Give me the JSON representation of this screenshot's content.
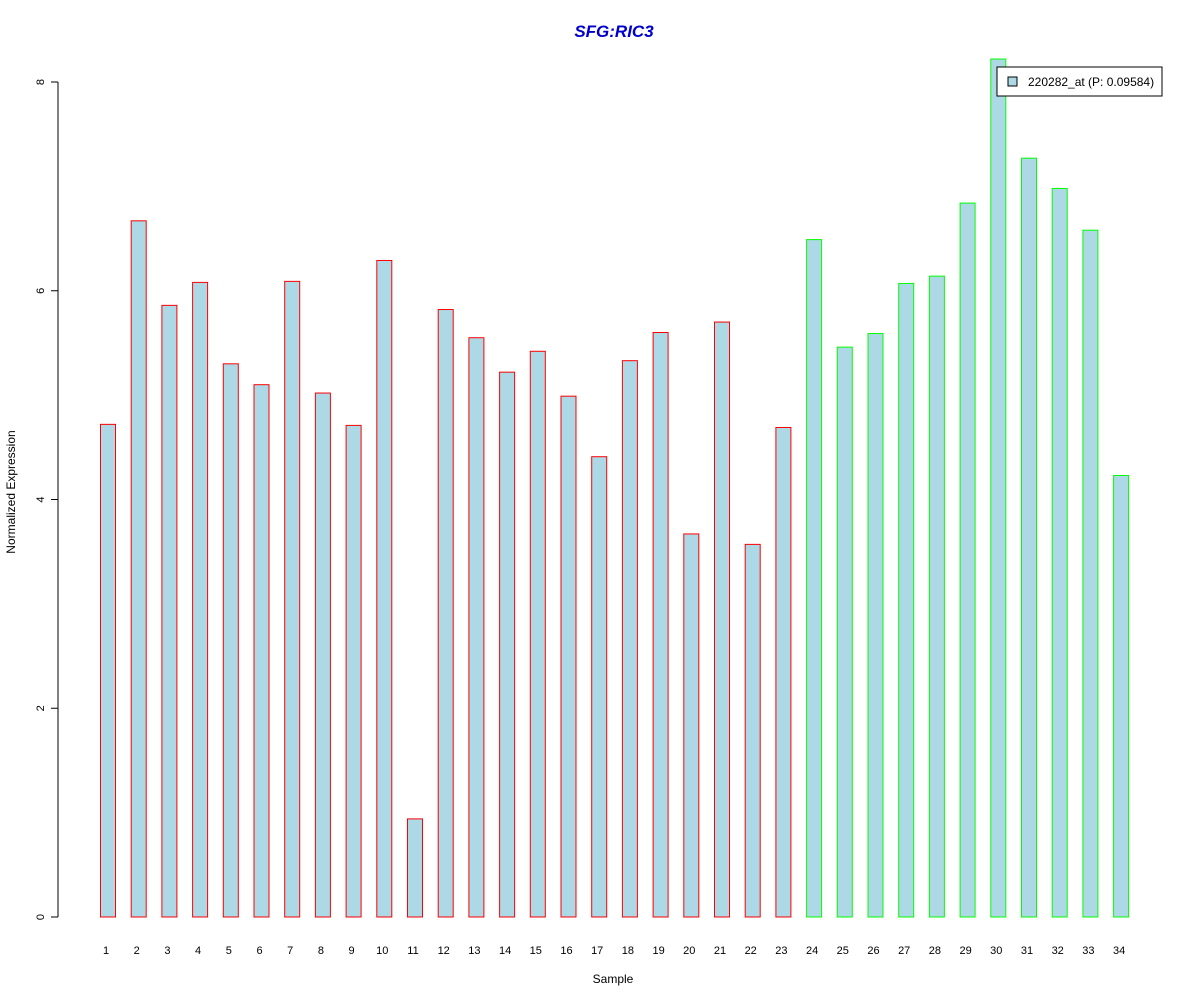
{
  "chart_data": {
    "type": "bar",
    "title": "SFG:RIC3",
    "xlabel": "Sample",
    "ylabel": "Normalized Expression",
    "ylim": [
      0,
      8
    ],
    "yticks": [
      0,
      2,
      4,
      6,
      8
    ],
    "grid": false,
    "legend_position": "top-right",
    "categories": [
      "1",
      "2",
      "3",
      "4",
      "5",
      "6",
      "7",
      "8",
      "9",
      "10",
      "11",
      "12",
      "13",
      "14",
      "15",
      "16",
      "17",
      "18",
      "19",
      "20",
      "21",
      "22",
      "23",
      "24",
      "25",
      "26",
      "27",
      "28",
      "29",
      "30",
      "31",
      "32",
      "33",
      "34"
    ],
    "series": [
      {
        "name": "220282_at (P: 0.09584)",
        "values": [
          4.72,
          6.67,
          5.86,
          6.08,
          5.3,
          5.1,
          6.09,
          5.02,
          4.71,
          6.29,
          0.94,
          5.82,
          5.55,
          5.22,
          5.42,
          4.99,
          4.41,
          5.33,
          5.6,
          3.67,
          5.7,
          3.57,
          4.69,
          6.49,
          5.46,
          5.59,
          6.07,
          6.14,
          6.84,
          8.22,
          7.27,
          6.98,
          6.58,
          4.23
        ],
        "groups": [
          "red",
          "red",
          "red",
          "red",
          "red",
          "red",
          "red",
          "red",
          "red",
          "red",
          "red",
          "red",
          "red",
          "red",
          "red",
          "red",
          "red",
          "red",
          "red",
          "red",
          "red",
          "red",
          "red",
          "green",
          "green",
          "green",
          "green",
          "green",
          "green",
          "green",
          "green",
          "green",
          "green",
          "green"
        ]
      }
    ],
    "colors": {
      "bar_fill": "#add8e6",
      "border_red": "#ff0000",
      "border_green": "#00ff00",
      "title": "#0000cc",
      "axis": "#000000"
    }
  }
}
